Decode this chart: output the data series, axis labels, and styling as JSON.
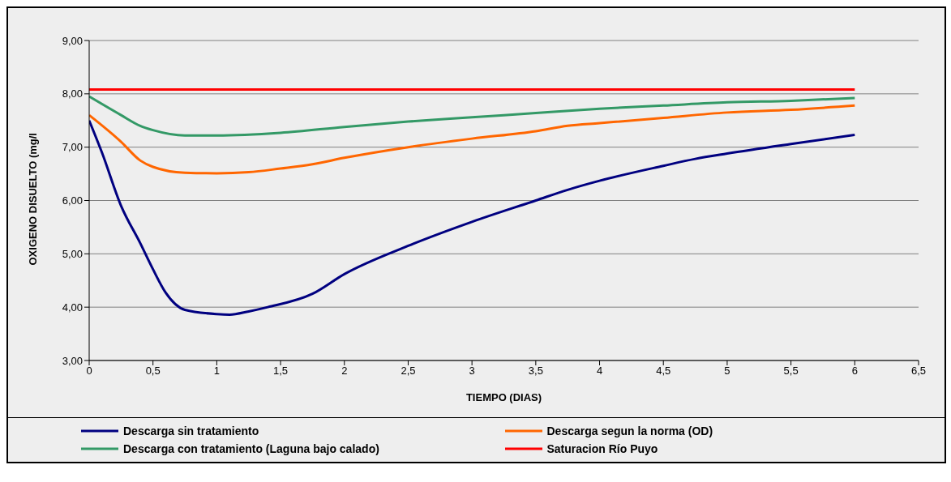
{
  "chart_data": {
    "type": "line",
    "xlabel": "TIEMPO (DIAS)",
    "ylabel": "OXIGENO DISUELTO (mg/l",
    "xlim": [
      0,
      6.5
    ],
    "xticks": [
      0,
      {
        "value": 0.5,
        "label": "0,5"
      },
      1,
      {
        "value": 1.5,
        "label": "1,5"
      },
      2,
      {
        "value": 2.5,
        "label": "2,5"
      },
      3,
      {
        "value": 3.5,
        "label": "3,5"
      },
      4,
      {
        "value": 4.5,
        "label": "4,5"
      },
      5,
      {
        "value": 5.5,
        "label": "5,5"
      },
      6,
      {
        "value": 6.5,
        "label": "6,5"
      }
    ],
    "ylim": [
      3,
      9
    ],
    "yticks": [
      {
        "value": 3,
        "label": "3,00"
      },
      {
        "value": 4,
        "label": "4,00"
      },
      {
        "value": 5,
        "label": "5,00"
      },
      {
        "value": 6,
        "label": "6,00"
      },
      {
        "value": 7,
        "label": "7,00"
      },
      {
        "value": 8,
        "label": "8,00"
      },
      {
        "value": 9,
        "label": "9,00"
      }
    ],
    "grid": "y",
    "legend": "bottom",
    "marker": "none",
    "line_style": "solid",
    "series": [
      {
        "name": "Descarga sin tratamiento",
        "color": "#000080",
        "x": [
          0,
          0.1,
          0.25,
          0.4,
          0.5,
          0.6,
          0.75,
          1,
          1.1,
          1.25,
          1.4,
          1.75,
          2,
          2.5,
          3,
          3.5,
          3.75,
          4,
          4.5,
          4.75,
          5,
          5.5,
          6
        ],
        "values": [
          7.5,
          6.9,
          5.9,
          5.2,
          4.71,
          4.27,
          3.95,
          3.87,
          3.86,
          3.92,
          4.0,
          4.25,
          4.62,
          5.15,
          5.6,
          6.0,
          6.2,
          6.37,
          6.65,
          6.78,
          6.88,
          7.06,
          7.23
        ]
      },
      {
        "name": "Descarga segun la norma (OD)",
        "color": "#ff6600",
        "x": [
          0,
          0.25,
          0.4,
          0.5,
          0.75,
          1,
          1.25,
          1.5,
          1.75,
          2,
          2.5,
          3,
          3.5,
          3.75,
          4,
          4.5,
          5,
          5.5,
          6
        ],
        "values": [
          7.6,
          7.1,
          6.75,
          6.63,
          6.52,
          6.51,
          6.53,
          6.6,
          6.68,
          6.8,
          7.0,
          7.16,
          7.3,
          7.4,
          7.45,
          7.55,
          7.65,
          7.7,
          7.78
        ]
      },
      {
        "name": "Descarga con tratamiento (Laguna bajo calado)",
        "color": "#339966",
        "x": [
          0,
          0.25,
          0.4,
          0.5,
          0.75,
          1,
          1.5,
          2,
          2.5,
          3,
          3.5,
          4,
          4.5,
          5,
          5.5,
          6
        ],
        "values": [
          7.95,
          7.6,
          7.4,
          7.32,
          7.22,
          7.22,
          7.27,
          7.38,
          7.48,
          7.56,
          7.64,
          7.72,
          7.78,
          7.84,
          7.87,
          7.92
        ]
      },
      {
        "name": "Saturacion Río Puyo",
        "color": "#ff0000",
        "x": [
          0,
          6
        ],
        "values": [
          8.08,
          8.08
        ]
      }
    ]
  }
}
